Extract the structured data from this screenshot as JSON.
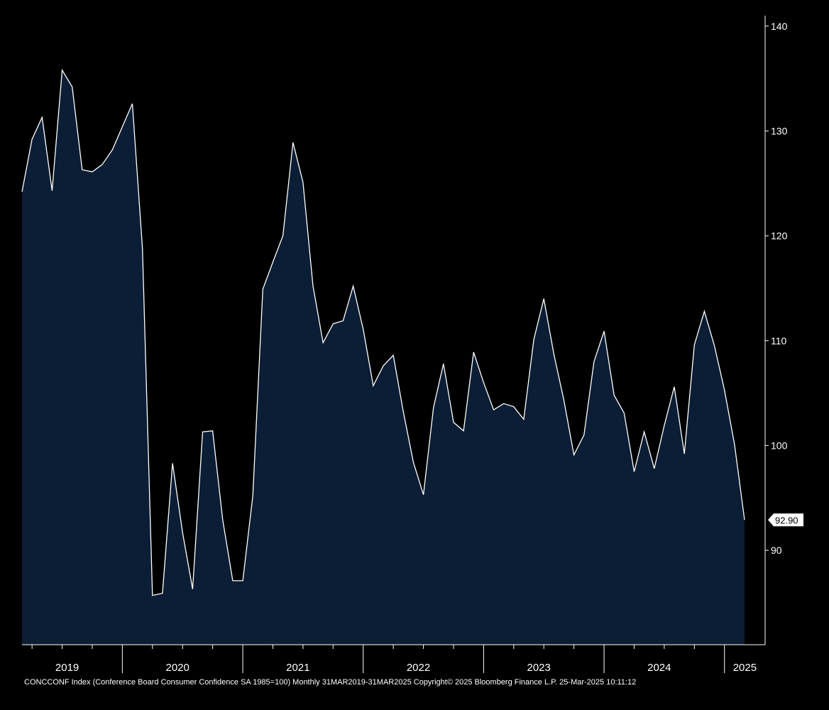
{
  "chart_data": {
    "type": "area",
    "x": [
      "2019-03",
      "2019-04",
      "2019-05",
      "2019-06",
      "2019-07",
      "2019-08",
      "2019-09",
      "2019-10",
      "2019-11",
      "2019-12",
      "2020-01",
      "2020-02",
      "2020-03",
      "2020-04",
      "2020-05",
      "2020-06",
      "2020-07",
      "2020-08",
      "2020-09",
      "2020-10",
      "2020-11",
      "2020-12",
      "2021-01",
      "2021-02",
      "2021-03",
      "2021-04",
      "2021-05",
      "2021-06",
      "2021-07",
      "2021-08",
      "2021-09",
      "2021-10",
      "2021-11",
      "2021-12",
      "2022-01",
      "2022-02",
      "2022-03",
      "2022-04",
      "2022-05",
      "2022-06",
      "2022-07",
      "2022-08",
      "2022-09",
      "2022-10",
      "2022-11",
      "2022-12",
      "2023-01",
      "2023-02",
      "2023-03",
      "2023-04",
      "2023-05",
      "2023-06",
      "2023-07",
      "2023-08",
      "2023-09",
      "2023-10",
      "2023-11",
      "2023-12",
      "2024-01",
      "2024-02",
      "2024-03",
      "2024-04",
      "2024-05",
      "2024-06",
      "2024-07",
      "2024-08",
      "2024-09",
      "2024-10",
      "2024-11",
      "2024-12",
      "2025-01",
      "2025-02",
      "2025-03"
    ],
    "series": [
      {
        "values": [
          124.2,
          129.2,
          131.3,
          124.3,
          135.8,
          134.2,
          126.3,
          126.1,
          126.8,
          128.2,
          130.4,
          132.6,
          118.8,
          85.7,
          85.9,
          98.3,
          91.7,
          86.3,
          101.3,
          101.4,
          92.9,
          87.1,
          87.1,
          95.2,
          114.9,
          117.5,
          120.0,
          128.9,
          125.1,
          115.2,
          109.8,
          111.6,
          111.9,
          115.2,
          111.1,
          105.7,
          107.6,
          108.6,
          103.2,
          98.4,
          95.3,
          103.6,
          107.8,
          102.2,
          101.4,
          108.9,
          106.0,
          103.4,
          104.0,
          103.7,
          102.5,
          110.1,
          114.0,
          108.7,
          104.3,
          99.1,
          101.0,
          108.0,
          110.9,
          104.8,
          103.1,
          97.5,
          101.3,
          97.8,
          101.9,
          105.6,
          99.2,
          109.6,
          112.8,
          109.5,
          105.3,
          100.1,
          92.9
        ]
      }
    ],
    "ylim": [
      81,
      141
    ],
    "yticks": [
      "90",
      "100",
      "110",
      "120",
      "130",
      "140"
    ],
    "xlabels": [
      "2019",
      "2020",
      "2021",
      "2022",
      "2023",
      "2024",
      "2025"
    ],
    "last_value_label": "92.90",
    "grid": false,
    "colors": {
      "background": "#000000",
      "fill": "#0c1e36",
      "line": "#ffffff"
    }
  },
  "footer": "CONCCONF Index (Conference Board Consumer Confidence SA 1985=100)  Monthly 31MAR2019-31MAR2025  Copyright© 2025 Bloomberg Finance L.P. 25-Mar-2025 10:11:12"
}
